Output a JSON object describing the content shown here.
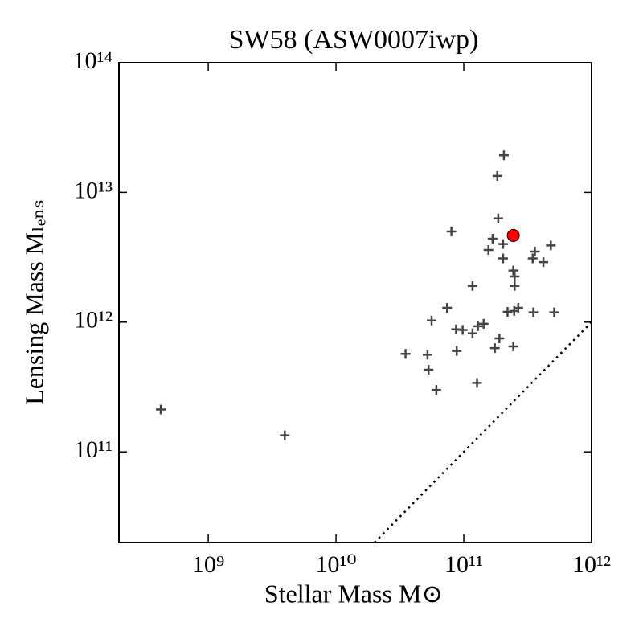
{
  "chart_data": {
    "type": "scatter",
    "title": "SW58 (ASW0007iwp)",
    "x_label": "Stellar Mass M⊙",
    "y_label": "Lensing Mass Mₗₑₙₛ",
    "log_x": true,
    "log_y": true,
    "xlim": [
      200000000.0,
      1000000000000.0
    ],
    "ylim": [
      20000000000.0,
      100000000000000.0
    ],
    "xticks": [
      {
        "value": 1000000000.0,
        "label": "10⁹"
      },
      {
        "value": 10000000000.0,
        "label": "10¹⁰"
      },
      {
        "value": 100000000000.0,
        "label": "10¹¹"
      },
      {
        "value": 1000000000000.0,
        "label": "10¹²"
      }
    ],
    "yticks": [
      {
        "value": 100000000000.0,
        "label": "10¹¹"
      },
      {
        "value": 1000000000000.0,
        "label": "10¹²"
      },
      {
        "value": 10000000000000.0,
        "label": "10¹³"
      },
      {
        "value": 100000000000000.0,
        "label": "10¹⁴"
      }
    ],
    "points": {
      "color": "#444444",
      "x": [
        425000000.0,
        3970000000.0,
        35000000000.0,
        52000000000.0,
        53000000000.0,
        61000000000.0,
        56000000000.0,
        74000000000.0,
        80000000000.0,
        87000000000.0,
        98000000000.0,
        88000000000.0,
        117000000000.0,
        117000000000.0,
        129000000000.0,
        143000000000.0,
        127000000000.0,
        156000000000.0,
        168000000000.0,
        183000000000.0,
        186000000000.0,
        206000000000.0,
        203000000000.0,
        203000000000.0,
        190000000000.0,
        175000000000.0,
        220000000000.0,
        244000000000.0,
        250000000000.0,
        250000000000.0,
        248000000000.0,
        267000000000.0,
        244000000000.0,
        350000000000.0,
        346000000000.0,
        360000000000.0,
        420000000000.0,
        480000000000.0,
        510000000000.0
      ],
      "y": [
        212000000000.0,
        134000000000.0,
        570000000000.0,
        560000000000.0,
        430000000000.0,
        300000000000.0,
        1030000000000.0,
        1290000000000.0,
        5000000000000.0,
        880000000000.0,
        870000000000.0,
        600000000000.0,
        1900000000000.0,
        820000000000.0,
        930000000000.0,
        970000000000.0,
        340000000000.0,
        3600000000000.0,
        4400000000000.0,
        13400000000000.0,
        6300000000000.0,
        19300000000000.0,
        4000000000000.0,
        3100000000000.0,
        750000000000.0,
        630000000000.0,
        1200000000000.0,
        2500000000000.0,
        2250000000000.0,
        1900000000000.0,
        1220000000000.0,
        1290000000000.0,
        650000000000.0,
        1190000000000.0,
        3100000000000.0,
        3500000000000.0,
        2900000000000.0,
        3900000000000.0,
        1190000000000.0
      ]
    },
    "highlight": {
      "color": "#ff0000",
      "x": [
        244000000000.0
      ],
      "y": [
        4660000000000.0
      ]
    },
    "reference_line": {
      "color": "#000000",
      "x": [
        20000000000.0,
        1000000000000.0
      ],
      "y": [
        20000000000.0,
        1000000000000.0
      ]
    }
  }
}
